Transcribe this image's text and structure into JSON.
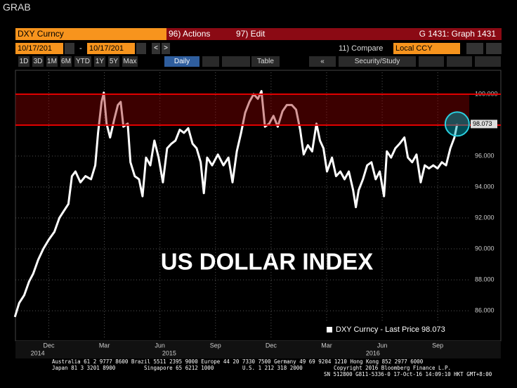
{
  "ui": {
    "grab": "GRAB",
    "row1": {
      "security": "DXY Curncy",
      "actions": "96) Actions",
      "edit": "97) Edit",
      "graph": "G 1431: Graph 1431"
    },
    "row2": {
      "start": "10/17/201",
      "dash": "-",
      "end": "10/17/201",
      "compare": "11) Compare",
      "ccy": "Local CCY"
    },
    "row3": {
      "periods": [
        "1D",
        "3D",
        "1M",
        "6M",
        "YTD",
        "1Y",
        "5Y",
        "Max"
      ],
      "freq": "Daily",
      "table": "Table",
      "study": "Security/Study"
    }
  },
  "chart_data": {
    "type": "line",
    "annotation": "US DOLLAR INDEX",
    "x": [
      0.17,
      0.4,
      0.67,
      0.94,
      1.16,
      1.43,
      1.7,
      2.0,
      2.3,
      2.57,
      2.84,
      3.06,
      3.25,
      3.44,
      3.71,
      3.98,
      4.28,
      4.51,
      4.66,
      4.85,
      4.97,
      5.12,
      5.31,
      5.54,
      5.73,
      5.88,
      6.03,
      6.26,
      6.41,
      6.64,
      6.87,
      7.06,
      7.25,
      7.48,
      7.7,
      7.93,
      8.16,
      8.39,
      8.62,
      8.84,
      9.07,
      9.3,
      9.53,
      9.76,
      9.98,
      10.2,
      10.37,
      10.55,
      10.82,
      11.13,
      11.43,
      11.7,
      11.92,
      12.15,
      12.38,
      12.6,
      12.83,
      13.06,
      13.29,
      13.48,
      13.67,
      13.9,
      14.13,
      14.36,
      14.62,
      14.85,
      15.12,
      15.35,
      15.57,
      15.76,
      15.99,
      16.22,
      16.45,
      16.64,
      16.83,
      17.02,
      17.29,
      17.51,
      17.74,
      17.97,
      18.2,
      18.43,
      18.58,
      18.73,
      18.96,
      19.19,
      19.42,
      19.65,
      19.87,
      20.1,
      20.25,
      20.48,
      20.71,
      20.94,
      21.2,
      21.39,
      21.62,
      21.85,
      22.08,
      22.3,
      22.53,
      22.76,
      22.99,
      23.22,
      23.45,
      23.68,
      23.9,
      24.05
    ],
    "series": [
      {
        "name": "DXY Curncy - Last Price 98.073",
        "color": "#ffffff",
        "values": [
          85.6,
          86.5,
          87.0,
          87.9,
          88.4,
          89.3,
          90.0,
          90.6,
          91.1,
          92.0,
          92.5,
          92.9,
          94.7,
          95.0,
          94.3,
          94.7,
          94.5,
          95.4,
          97.5,
          99.5,
          100.1,
          98.1,
          97.2,
          98.4,
          99.3,
          99.5,
          97.9,
          98.1,
          95.6,
          94.7,
          94.5,
          93.4,
          95.9,
          95.4,
          97.0,
          95.9,
          94.3,
          96.5,
          96.8,
          97.0,
          97.7,
          97.5,
          97.8,
          96.8,
          96.5,
          95.6,
          93.6,
          95.9,
          95.4,
          96.1,
          95.4,
          95.9,
          94.3,
          96.3,
          97.5,
          98.8,
          99.5,
          100.0,
          99.7,
          100.2,
          97.9,
          98.1,
          98.6,
          97.9,
          98.9,
          99.3,
          99.3,
          99.0,
          97.7,
          96.1,
          96.7,
          96.3,
          98.1,
          97.0,
          96.5,
          95.0,
          95.9,
          94.7,
          95.0,
          94.5,
          95.0,
          93.8,
          92.7,
          93.8,
          94.5,
          95.4,
          95.6,
          94.5,
          95.0,
          93.4,
          96.3,
          95.9,
          96.5,
          96.8,
          97.2,
          95.9,
          95.6,
          96.1,
          94.3,
          95.4,
          95.2,
          95.4,
          95.2,
          95.6,
          95.4,
          96.5,
          97.2,
          98.073
        ]
      }
    ],
    "xlim": [
      0.2,
      24.7
    ],
    "xticks": [
      {
        "value": 2,
        "label": "Dec"
      },
      {
        "value": 5,
        "label": "Mar"
      },
      {
        "value": 8,
        "label": "Jun"
      },
      {
        "value": 11,
        "label": "Sep"
      },
      {
        "value": 14,
        "label": "Dec"
      },
      {
        "value": 17,
        "label": "Mar"
      },
      {
        "value": 20,
        "label": "Jun"
      },
      {
        "value": 23,
        "label": "Sep"
      }
    ],
    "year_ticks": [
      {
        "value": 1.4,
        "label": "2014"
      },
      {
        "value": 8.5,
        "label": "2015"
      },
      {
        "value": 19.5,
        "label": "2016"
      }
    ],
    "ylim": [
      84.14,
      101.41
    ],
    "yticks": [
      {
        "value": 86,
        "label": "86.000"
      },
      {
        "value": 88,
        "label": "88.000"
      },
      {
        "value": 90,
        "label": "90.000"
      },
      {
        "value": 92,
        "label": "92.000"
      },
      {
        "value": 94,
        "label": "94.000"
      },
      {
        "value": 96,
        "label": "96.000"
      },
      {
        "value": 98,
        "label": "98.000"
      },
      {
        "value": 100,
        "label": "100.000"
      }
    ],
    "hlines": [
      100,
      98
    ],
    "hline_color": "#e00000",
    "grid": true
  },
  "footer": {
    "line1": "Australia 61 2 9777 8600 Brazil 5511 2395 9000 Europe 44 20 7330 7500 Germany 49 69 9204 1210 Hong Kong 852 2977 6000",
    "line2": [
      "Japan 81 3 3201 8900",
      "Singapore 65 6212 1000",
      "U.S. 1 212 318 2000",
      "Copyright 2016 Bloomberg Finance L.P."
    ],
    "line3": "SN 512800 G811-5336-0 17-Oct-16 14:09:10 HKT  GMT+8:00"
  }
}
